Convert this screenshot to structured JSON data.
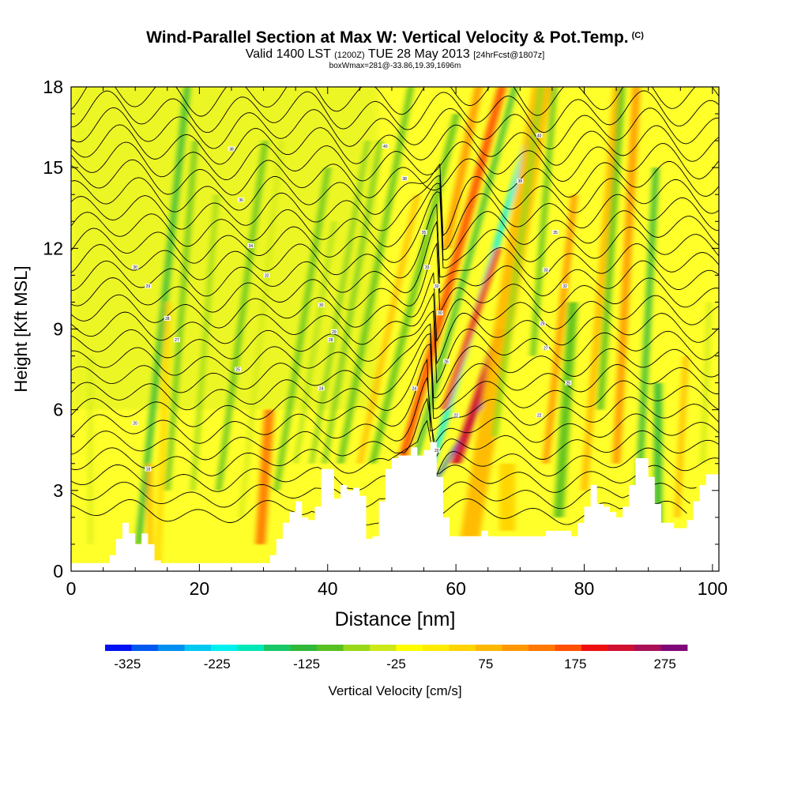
{
  "chart_data": {
    "type": "heatmap",
    "title": "Wind-Parallel Section at Max W: Vertical Velocity & Pot.Temp.",
    "title_mark": "(C)",
    "subtitle": {
      "valid": "Valid 1400 LST",
      "utc": "(1200Z)",
      "date": "TUE 28 May 2013",
      "forecast": "[24hrFcst@1807z]"
    },
    "info_line": "boxWmax=281@-33.86,19.39,1696m",
    "xlabel": "Distance [nm]",
    "ylabel": "Height [Kft MSL]",
    "xlim": [
      0,
      101
    ],
    "ylim": [
      0,
      18
    ],
    "x_ticks": [
      0,
      20,
      40,
      60,
      80,
      100
    ],
    "y_ticks": [
      0,
      3,
      6,
      9,
      12,
      15,
      18
    ],
    "colorbar": {
      "label": "Vertical Velocity [cm/s]",
      "range": [
        -350,
        300
      ],
      "tick_labels": [
        -325,
        -225,
        -125,
        -25,
        75,
        175,
        275
      ],
      "colors": [
        "#0010f0",
        "#0058f0",
        "#0090f0",
        "#00c8f0",
        "#00f0f0",
        "#00e8b8",
        "#18c868",
        "#30b838",
        "#58c020",
        "#98d818",
        "#cce818",
        "#ffff00",
        "#ffec00",
        "#ffd400",
        "#ffb800",
        "#ff9800",
        "#ff7800",
        "#ff5000",
        "#ee1010",
        "#d01030",
        "#a81058",
        "#800878"
      ]
    },
    "terrain_profile": {
      "x": [
        0,
        6,
        7,
        8,
        9,
        10,
        11,
        12,
        13,
        14,
        18,
        20,
        22,
        25,
        27,
        30,
        31,
        32,
        33,
        34,
        35,
        36,
        37,
        38,
        39,
        40,
        41,
        42,
        43,
        44,
        45,
        46,
        47,
        48,
        49,
        50,
        51,
        52,
        53,
        54,
        55,
        56,
        57,
        58,
        59,
        60,
        61,
        62,
        63,
        64,
        65,
        66,
        67,
        68,
        69,
        70,
        71,
        72,
        73,
        74,
        75,
        76,
        77,
        78,
        79,
        80,
        81,
        82,
        83,
        84,
        85,
        86,
        87,
        88,
        89,
        90,
        91,
        92,
        93,
        94,
        95,
        96,
        97,
        98,
        99,
        100,
        101
      ],
      "height": [
        0.3,
        0.6,
        1.2,
        1.8,
        1.4,
        1.0,
        1.4,
        1.0,
        0.4,
        0.3,
        0.3,
        0.3,
        0.3,
        0.3,
        0.3,
        0.3,
        0.6,
        1.2,
        1.8,
        2.2,
        2.6,
        2.0,
        1.9,
        2.4,
        3.8,
        3.8,
        2.7,
        3.2,
        3.0,
        3.1,
        2.8,
        1.2,
        1.3,
        2.6,
        3.8,
        4.2,
        4.3,
        4.3,
        4.6,
        4.3,
        4.5,
        4.8,
        3.5,
        2.0,
        1.3,
        1.3,
        1.3,
        1.3,
        1.3,
        1.5,
        1.3,
        1.3,
        1.3,
        1.3,
        1.3,
        1.3,
        1.3,
        1.3,
        1.3,
        1.5,
        1.5,
        1.5,
        1.5,
        1.3,
        1.8,
        2.4,
        3.2,
        2.5,
        2.4,
        2.2,
        2.0,
        2.4,
        3.2,
        4.2,
        4.2,
        3.5,
        2.5,
        1.8,
        1.8,
        1.6,
        1.6,
        1.9,
        2.6,
        3.2,
        3.6,
        3.6,
        3.6
      ]
    },
    "vertical_velocity_bands": [
      {
        "x": 3,
        "w": 0.5,
        "y_bot": 1,
        "y_top": 8,
        "tilt": 0.0,
        "value": -30
      },
      {
        "x": 10.5,
        "w": 0.9,
        "y_bot": 1,
        "y_top": 18,
        "tilt": 0.08,
        "value": -120
      },
      {
        "x": 13.5,
        "w": 0.8,
        "y_bot": 0,
        "y_top": 10,
        "tilt": 0.03,
        "value": 55
      },
      {
        "x": 12.3,
        "w": 0.8,
        "y_bot": 0,
        "y_top": 4,
        "tilt": 0.0,
        "value": 85
      },
      {
        "x": 15,
        "w": 0.7,
        "y_bot": 3,
        "y_top": 16,
        "tilt": 0.06,
        "value": -100
      },
      {
        "x": 19,
        "w": 0.7,
        "y_bot": 3,
        "y_top": 14,
        "tilt": 0.06,
        "value": -70
      },
      {
        "x": 23,
        "w": 0.8,
        "y_bot": 3,
        "y_top": 16,
        "tilt": 0.1,
        "value": -90
      },
      {
        "x": 26.5,
        "w": 0.6,
        "y_bot": 2,
        "y_top": 16,
        "tilt": 0.08,
        "value": -50
      },
      {
        "x": 29.5,
        "w": 1.5,
        "y_bot": 1,
        "y_top": 6,
        "tilt": 0.05,
        "value": 140
      },
      {
        "x": 32,
        "w": 0.8,
        "y_bot": 3,
        "y_top": 15,
        "tilt": 0.12,
        "value": -100
      },
      {
        "x": 35,
        "w": 0.5,
        "y_bot": 4,
        "y_top": 13,
        "tilt": 0.12,
        "value": -80
      },
      {
        "x": 37.5,
        "w": 0.5,
        "y_bot": 4,
        "y_top": 16,
        "tilt": 0.13,
        "value": -90
      },
      {
        "x": 39.5,
        "w": 0.6,
        "y_bot": 4,
        "y_top": 16,
        "tilt": 0.13,
        "value": -100
      },
      {
        "x": 42,
        "w": 0.9,
        "y_bot": 4,
        "y_top": 18,
        "tilt": 0.14,
        "value": -110
      },
      {
        "x": 45,
        "w": 0.8,
        "y_bot": 4,
        "y_top": 14,
        "tilt": 0.16,
        "value": 90
      },
      {
        "x": 47,
        "w": 1.0,
        "y_bot": 4,
        "y_top": 17,
        "tilt": 0.18,
        "value": -100
      },
      {
        "x": 51.5,
        "w": 1.3,
        "y_bot": 4,
        "y_top": 18,
        "tilt": 0.2,
        "value": 170
      },
      {
        "x": 53.5,
        "w": 0.8,
        "y_bot": 4,
        "y_top": 18,
        "tilt": 0.2,
        "value": -130
      },
      {
        "x": 56.3,
        "w": 0.9,
        "y_bot": 4,
        "y_top": 18,
        "tilt": 0.22,
        "value": -230
      },
      {
        "x": 56.9,
        "w": 0.55,
        "y_bot": 3.4,
        "y_top": 6.5,
        "tilt": 0.45,
        "value": -300
      },
      {
        "x": 58.2,
        "w": 0.9,
        "y_bot": 6,
        "y_top": 12,
        "tilt": 0.25,
        "value": 190
      },
      {
        "x": 60.0,
        "w": 1.5,
        "y_bot": 4,
        "y_top": 9,
        "tilt": 0.25,
        "value": 240
      },
      {
        "x": 58.5,
        "w": 1.2,
        "y_bot": 12,
        "y_top": 18,
        "tilt": 0.15,
        "value": 120
      },
      {
        "x": 62,
        "w": 3.0,
        "y_bot": 1,
        "y_top": 18,
        "tilt": 0.12,
        "value": 70
      },
      {
        "x": 66,
        "w": 1.0,
        "y_bot": 5,
        "y_top": 18,
        "tilt": 0.1,
        "value": -60
      },
      {
        "x": 68,
        "w": 2.5,
        "y_bot": 1.5,
        "y_top": 4,
        "tilt": 0.0,
        "value": 40
      },
      {
        "x": 72,
        "w": 0.8,
        "y_bot": 8,
        "y_top": 18,
        "tilt": 0.06,
        "value": -110
      },
      {
        "x": 74,
        "w": 1.0,
        "y_bot": 4,
        "y_top": 14,
        "tilt": 0.08,
        "value": 110
      },
      {
        "x": 76,
        "w": 1.5,
        "y_bot": 2,
        "y_top": 10,
        "tilt": 0.05,
        "value": -110
      },
      {
        "x": 80,
        "w": 1.0,
        "y_bot": 3,
        "y_top": 18,
        "tilt": 0.06,
        "value": 90
      },
      {
        "x": 82.5,
        "w": 1.0,
        "y_bot": 6,
        "y_top": 18,
        "tilt": 0.05,
        "value": -90
      },
      {
        "x": 85,
        "w": 1.2,
        "y_bot": 4,
        "y_top": 18,
        "tilt": 0.04,
        "value": 100
      },
      {
        "x": 88.5,
        "w": 0.9,
        "y_bot": 3,
        "y_top": 15,
        "tilt": 0.04,
        "value": -120
      },
      {
        "x": 91.5,
        "w": 1.2,
        "y_bot": 1,
        "y_top": 7,
        "tilt": 0.0,
        "value": -140
      },
      {
        "x": 94.5,
        "w": 0.8,
        "y_bot": 2,
        "y_top": 8,
        "tilt": 0.04,
        "value": 70
      },
      {
        "x": 98.5,
        "w": 0.7,
        "y_bot": 4,
        "y_top": 10,
        "tilt": 0.03,
        "value": -50
      }
    ],
    "isentrope_labels": [
      {
        "x": 10,
        "y": 11.3,
        "text": "30"
      },
      {
        "x": 12,
        "y": 10.6,
        "text": "29"
      },
      {
        "x": 15,
        "y": 9.4,
        "text": "28"
      },
      {
        "x": 16.5,
        "y": 8.6,
        "text": "27"
      },
      {
        "x": 10,
        "y": 5.5,
        "text": "20"
      },
      {
        "x": 12,
        "y": 3.8,
        "text": "18"
      },
      {
        "x": 25,
        "y": 15.7,
        "text": "38"
      },
      {
        "x": 26.5,
        "y": 13.8,
        "text": "36"
      },
      {
        "x": 28,
        "y": 12.1,
        "text": "34"
      },
      {
        "x": 30.5,
        "y": 11.0,
        "text": "32"
      },
      {
        "x": 26,
        "y": 7.5,
        "text": "25"
      },
      {
        "x": 39,
        "y": 9.9,
        "text": "30"
      },
      {
        "x": 40.5,
        "y": 8.6,
        "text": "28"
      },
      {
        "x": 41,
        "y": 8.9,
        "text": "29"
      },
      {
        "x": 39,
        "y": 6.8,
        "text": "24"
      },
      {
        "x": 49,
        "y": 15.8,
        "text": "40"
      },
      {
        "x": 52,
        "y": 14.6,
        "text": "38"
      },
      {
        "x": 55,
        "y": 12.6,
        "text": "35"
      },
      {
        "x": 55.5,
        "y": 11.3,
        "text": "33"
      },
      {
        "x": 57,
        "y": 10.6,
        "text": "32"
      },
      {
        "x": 57.5,
        "y": 9.6,
        "text": "30"
      },
      {
        "x": 58.5,
        "y": 7.8,
        "text": "26"
      },
      {
        "x": 53.5,
        "y": 6.8,
        "text": "24"
      },
      {
        "x": 60,
        "y": 5.8,
        "text": "22"
      },
      {
        "x": 57,
        "y": 4.5,
        "text": "20"
      },
      {
        "x": 73,
        "y": 16.2,
        "text": "40"
      },
      {
        "x": 70,
        "y": 14.5,
        "text": "38"
      },
      {
        "x": 75.5,
        "y": 12.6,
        "text": "35"
      },
      {
        "x": 74,
        "y": 11.2,
        "text": "33"
      },
      {
        "x": 77,
        "y": 10.6,
        "text": "32"
      },
      {
        "x": 73.5,
        "y": 9.2,
        "text": "29"
      },
      {
        "x": 74,
        "y": 8.3,
        "text": "27"
      },
      {
        "x": 77.5,
        "y": 7.0,
        "text": "25"
      },
      {
        "x": 73,
        "y": 5.8,
        "text": "22"
      }
    ]
  }
}
